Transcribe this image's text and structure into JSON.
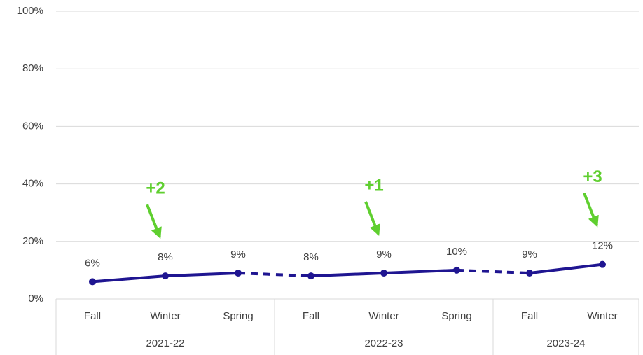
{
  "chart_data": {
    "type": "line",
    "line_color": "#1f1591",
    "annotation_color": "#5fcf2f",
    "ylim": [
      0,
      100
    ],
    "yticks": [
      {
        "value": 0,
        "label": "0%"
      },
      {
        "value": 20,
        "label": "20%"
      },
      {
        "value": 40,
        "label": "40%"
      },
      {
        "value": 60,
        "label": "60%"
      },
      {
        "value": 80,
        "label": "80%"
      },
      {
        "value": 100,
        "label": "100%"
      }
    ],
    "grid": true,
    "groups": [
      {
        "name": "2021-22",
        "categories": [
          "Fall",
          "Winter",
          "Spring"
        ],
        "values": [
          6,
          8,
          9
        ],
        "value_labels": [
          "6%",
          "8%",
          "9%"
        ]
      },
      {
        "name": "2022-23",
        "categories": [
          "Fall",
          "Winter",
          "Spring"
        ],
        "values": [
          8,
          9,
          10
        ],
        "value_labels": [
          "8%",
          "9%",
          "10%"
        ]
      },
      {
        "name": "2023-24",
        "categories": [
          "Fall",
          "Winter"
        ],
        "values": [
          9,
          12
        ],
        "value_labels": [
          "9%",
          "12%"
        ]
      }
    ],
    "annotations": [
      {
        "text": "+2",
        "group": "2021-22",
        "category": "Winter"
      },
      {
        "text": "+1",
        "group": "2022-23",
        "category": "Winter"
      },
      {
        "text": "+3",
        "group": "2023-24",
        "category": "Winter"
      }
    ]
  }
}
